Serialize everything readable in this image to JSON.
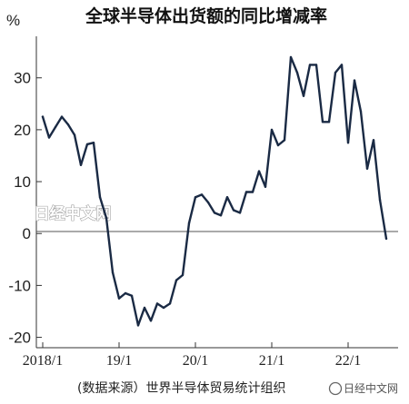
{
  "chart_data": {
    "type": "line",
    "title": "全球半导体出货额的同比增减率",
    "ylabel": "%",
    "xlabel": "",
    "ylim": [
      -22,
      38
    ],
    "yticks": [
      -20,
      -10,
      0,
      10,
      20,
      30
    ],
    "x_tick_labels": [
      "2018/1",
      "19/1",
      "20/1",
      "21/1",
      "22/1"
    ],
    "grid": false,
    "series": [
      {
        "values": [
          22.5,
          18.5,
          20.5,
          22.5,
          21.0,
          19.0,
          13.2,
          17.2,
          17.5,
          7.0,
          3.0,
          -7.5,
          -12.5,
          -11.5,
          -12.0,
          -17.7,
          -14.3,
          -16.8,
          -13.5,
          -14.3,
          -13.5,
          -9.0,
          -8.0,
          2.0,
          7.0,
          7.5,
          6.0,
          4.0,
          3.5,
          7.0,
          4.5,
          4.0,
          8.0,
          8.0,
          12.0,
          9.0,
          20.0,
          17.0,
          18.0,
          34.0,
          31.0,
          26.5,
          32.5,
          32.5,
          21.5,
          21.5,
          31.0,
          32.5,
          17.5,
          29.5,
          23.5,
          12.5,
          18.0,
          6.5,
          -1.0
        ]
      }
    ],
    "source": "(数据来源）世界半导体贸易统计组织"
  },
  "watermarks": {
    "center": "日经中文网",
    "corner": "日经中文网"
  }
}
